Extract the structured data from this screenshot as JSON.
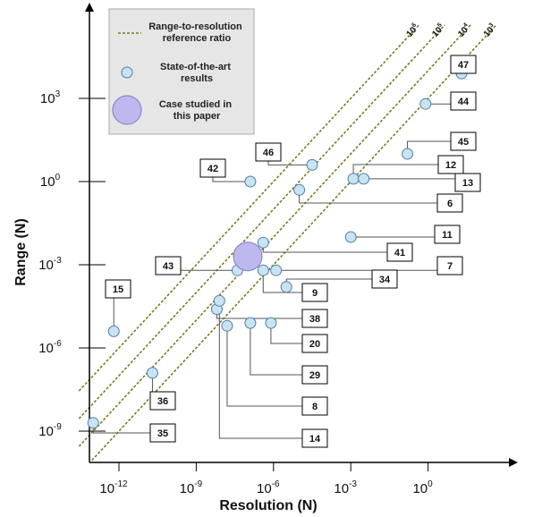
{
  "chart_data": {
    "type": "scatter",
    "xlabel": "Resolution (N)",
    "ylabel": "Range (N)",
    "xscale": "log",
    "yscale": "log",
    "xlim_log10": [
      -13.5,
      3.5
    ],
    "ylim_log10": [
      -10,
      6
    ],
    "xticks": [
      {
        "log10": -12,
        "label": "10",
        "exp": "-12"
      },
      {
        "log10": -9,
        "label": "10",
        "exp": "-9"
      },
      {
        "log10": -6,
        "label": "10",
        "exp": "-6"
      },
      {
        "log10": -3,
        "label": "10",
        "exp": "-3"
      },
      {
        "log10": 0,
        "label": "10",
        "exp": "0"
      }
    ],
    "yticks": [
      {
        "log10": -9,
        "label": "10",
        "exp": "-9"
      },
      {
        "log10": -6,
        "label": "10",
        "exp": "-6"
      },
      {
        "log10": -3,
        "label": "10",
        "exp": "-3"
      },
      {
        "log10": 0,
        "label": "10",
        "exp": "0"
      },
      {
        "log10": 3,
        "label": "10",
        "exp": "3"
      }
    ],
    "legend": {
      "placement": "top-left",
      "entries": [
        {
          "key": "ratio",
          "lines": [
            "Range-to-resolution",
            "reference ratio"
          ]
        },
        {
          "key": "sota",
          "lines": [
            "State-of-the-art",
            "results"
          ]
        },
        {
          "key": "this",
          "lines": [
            "Case studied in",
            "this paper"
          ]
        }
      ]
    },
    "reference_lines": [
      {
        "ratio_log10": 6,
        "label": "10",
        "exp": "6"
      },
      {
        "ratio_log10": 5,
        "label": "10",
        "exp": "5"
      },
      {
        "ratio_log10": 4,
        "label": "10",
        "exp": "4"
      },
      {
        "ratio_log10": 3,
        "label": "10",
        "exp": "3"
      }
    ],
    "colors": {
      "sota_fill": "#c9e3f3",
      "sota_stroke": "#4f7fa6",
      "this_fill": "#bdb9ee",
      "this_stroke": "#7f78c6",
      "ref_line": "#7a7a22",
      "legend_bg": "#e6e6e6"
    },
    "points": [
      {
        "label": "47",
        "x": 1.3,
        "y": 3.9
      },
      {
        "label": "44",
        "x": -0.1,
        "y": 2.8
      },
      {
        "label": "45",
        "x": -0.8,
        "y": 1.0
      },
      {
        "label": "12",
        "x": -2.9,
        "y": 0.1
      },
      {
        "label": "13",
        "x": -2.5,
        "y": 0.1
      },
      {
        "label": "46",
        "x": -4.5,
        "y": 0.6
      },
      {
        "label": "6",
        "x": -5.0,
        "y": -0.3
      },
      {
        "label": "42",
        "x": -6.9,
        "y": 0.0
      },
      {
        "label": "11",
        "x": -3.0,
        "y": -2.0
      },
      {
        "label": "41",
        "x": -6.4,
        "y": -2.2
      },
      {
        "label": "43",
        "x": -7.4,
        "y": -3.2
      },
      {
        "label": "7",
        "x": -5.9,
        "y": -3.2
      },
      {
        "label": "34",
        "x": -5.5,
        "y": -3.8
      },
      {
        "label": "9",
        "x": -6.4,
        "y": -3.2
      },
      {
        "label": "38",
        "x": -8.2,
        "y": -4.6
      },
      {
        "label": "14",
        "x": -8.1,
        "y": -4.3
      },
      {
        "label": "20",
        "x": -6.1,
        "y": -5.1
      },
      {
        "label": "29",
        "x": -6.9,
        "y": -5.1
      },
      {
        "label": "8",
        "x": -7.8,
        "y": -5.2
      },
      {
        "label": "15",
        "x": -12.2,
        "y": -5.4
      },
      {
        "label": "36",
        "x": -10.7,
        "y": -6.9
      },
      {
        "label": "35",
        "x": -13.0,
        "y": -8.7
      },
      {
        "label": "",
        "x": -7.0,
        "y": -2.7
      }
    ]
  }
}
